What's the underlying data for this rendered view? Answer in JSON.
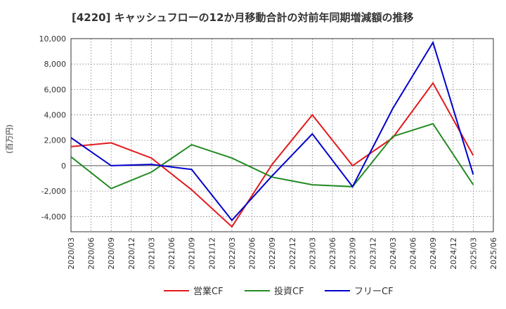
{
  "chart_data": {
    "type": "line",
    "title": "[4220]  キャッシュフローの12か月移動合計の対前年同期増減額の推移",
    "ylabel": "(百万円)",
    "xlabel": "",
    "ylim": [
      -5200,
      10000
    ],
    "yticks": [
      -4000,
      -2000,
      0,
      2000,
      4000,
      6000,
      8000,
      10000
    ],
    "ytick_labels": [
      "-4,000",
      "-2,000",
      "0",
      "2,000",
      "4,000",
      "6,000",
      "8,000",
      "10,000"
    ],
    "x_ticks": [
      "2020/03",
      "2020/06",
      "2020/09",
      "2020/12",
      "2021/03",
      "2021/06",
      "2021/09",
      "2021/12",
      "2022/03",
      "2022/06",
      "2022/09",
      "2022/12",
      "2023/03",
      "2023/06",
      "2023/09",
      "2023/12",
      "2024/03",
      "2024/06",
      "2024/09",
      "2024/12",
      "2025/03",
      "2025/06"
    ],
    "x": [
      "2020/03",
      "2020/09",
      "2021/03",
      "2021/09",
      "2022/03",
      "2022/09",
      "2023/03",
      "2023/09",
      "2024/03",
      "2024/09",
      "2025/03"
    ],
    "grid": true,
    "legend_position": "bottom",
    "series": [
      {
        "name": "営業CF",
        "color": "#e31a1c",
        "values": [
          1500,
          1800,
          600,
          -1900,
          -4800,
          100,
          4000,
          0,
          2200,
          6500,
          800
        ]
      },
      {
        "name": "投資CF",
        "color": "#228b22",
        "values": [
          700,
          -1800,
          -500,
          1650,
          600,
          -900,
          -1500,
          -1650,
          2300,
          3300,
          -1500
        ]
      },
      {
        "name": "フリーCF",
        "color": "#0000cc",
        "values": [
          2200,
          0,
          100,
          -300,
          -4300,
          -800,
          2500,
          -1650,
          4500,
          9700,
          -700
        ]
      }
    ]
  }
}
